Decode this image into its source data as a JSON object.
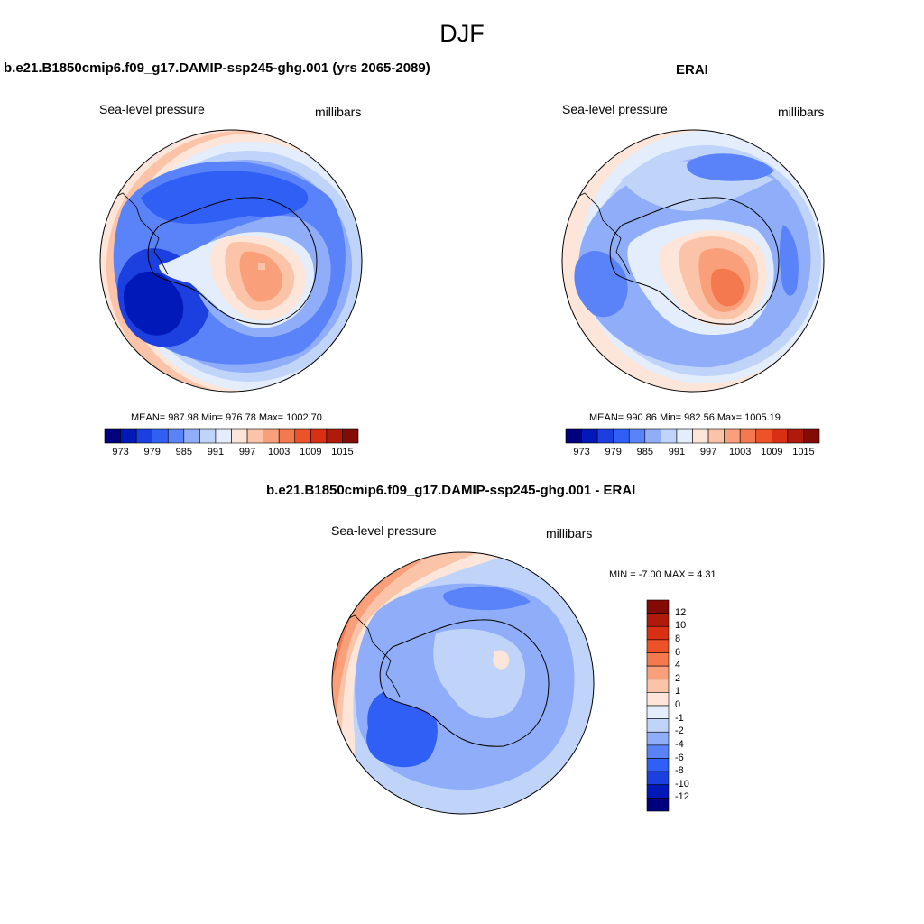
{
  "figure": {
    "title": "DJF"
  },
  "panels": [
    {
      "title": "b.e21.B1850cmip6.f09_g17.DAMIP-ssp245-ghg.001 (yrs 2065-2089)",
      "left_label": "Sea-level pressure",
      "right_label": "millibars",
      "stats": "MEAN= 987.98  Min= 976.78  Max= 1002.70"
    },
    {
      "title": "ERAI",
      "left_label": "Sea-level pressure",
      "right_label": "millibars",
      "stats": "MEAN= 990.86  Min= 982.56  Max= 1005.19"
    },
    {
      "title": "b.e21.B1850cmip6.f09_g17.DAMIP-ssp245-ghg.001 - ERAI",
      "left_label": "Sea-level pressure",
      "right_label": "millibars",
      "stats": "MIN =  -7.00 MAX =   4.31"
    }
  ],
  "colorbars": {
    "slp_levels_labeled": [
      "973",
      "979",
      "985",
      "991",
      "997",
      "1003",
      "1009",
      "1015"
    ],
    "slp_colors": [
      "#00007e",
      "#0019b8",
      "#1c3fe0",
      "#2f5ff5",
      "#5b83f9",
      "#8fadf9",
      "#c0d4fa",
      "#e3edfb",
      "#fde6d9",
      "#fbc3a7",
      "#f9a07a",
      "#f4794f",
      "#ee5229",
      "#d92f13",
      "#b01a0b",
      "#830a05"
    ],
    "diff_levels": [
      "12",
      "10",
      "8",
      "6",
      "4",
      "2",
      "1",
      "0",
      "-1",
      "-2",
      "-4",
      "-6",
      "-8",
      "-10",
      "-12"
    ],
    "diff_colors": [
      "#830a05",
      "#b01a0b",
      "#d92f13",
      "#ee5229",
      "#f4794f",
      "#f9a07a",
      "#fbc3a7",
      "#fde6d9",
      "#e3edfb",
      "#c0d4fa",
      "#8fadf9",
      "#5b83f9",
      "#2f5ff5",
      "#1c3fe0",
      "#0019b8",
      "#00007e"
    ]
  }
}
